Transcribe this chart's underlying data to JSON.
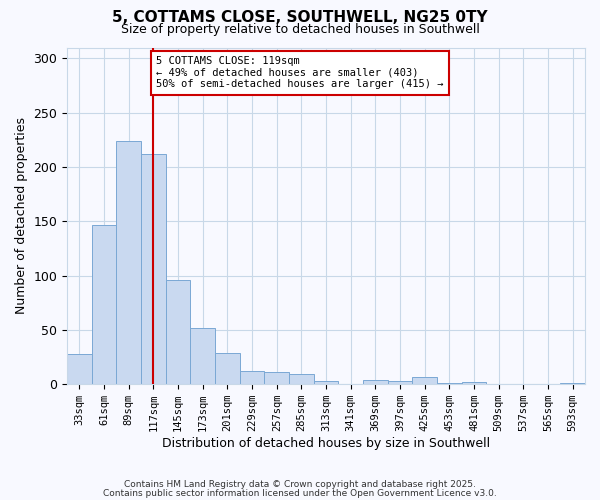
{
  "title": "5, COTTAMS CLOSE, SOUTHWELL, NG25 0TY",
  "subtitle": "Size of property relative to detached houses in Southwell",
  "xlabel": "Distribution of detached houses by size in Southwell",
  "ylabel": "Number of detached properties",
  "bin_labels": [
    "33sqm",
    "61sqm",
    "89sqm",
    "117sqm",
    "145sqm",
    "173sqm",
    "201sqm",
    "229sqm",
    "257sqm",
    "285sqm",
    "313sqm",
    "341sqm",
    "369sqm",
    "397sqm",
    "425sqm",
    "453sqm",
    "481sqm",
    "509sqm",
    "537sqm",
    "565sqm",
    "593sqm"
  ],
  "bin_values": [
    28,
    147,
    224,
    212,
    96,
    52,
    29,
    12,
    11,
    9,
    3,
    0,
    4,
    3,
    7,
    1,
    2,
    0,
    0,
    0,
    1
  ],
  "bar_color": "#c9d9f0",
  "bar_edge_color": "#7aa8d4",
  "vline_x": 3,
  "vline_color": "#cc0000",
  "annotation_line1": "5 COTTAMS CLOSE: 119sqm",
  "annotation_line2": "← 49% of detached houses are smaller (403)",
  "annotation_line3": "50% of semi-detached houses are larger (415) →",
  "annotation_box_color": "#cc0000",
  "ylim": [
    0,
    310
  ],
  "yticks": [
    0,
    50,
    100,
    150,
    200,
    250,
    300
  ],
  "background_color": "#f8f9ff",
  "grid_color": "#c8d8e8",
  "footer1": "Contains HM Land Registry data © Crown copyright and database right 2025.",
  "footer2": "Contains public sector information licensed under the Open Government Licence v3.0."
}
